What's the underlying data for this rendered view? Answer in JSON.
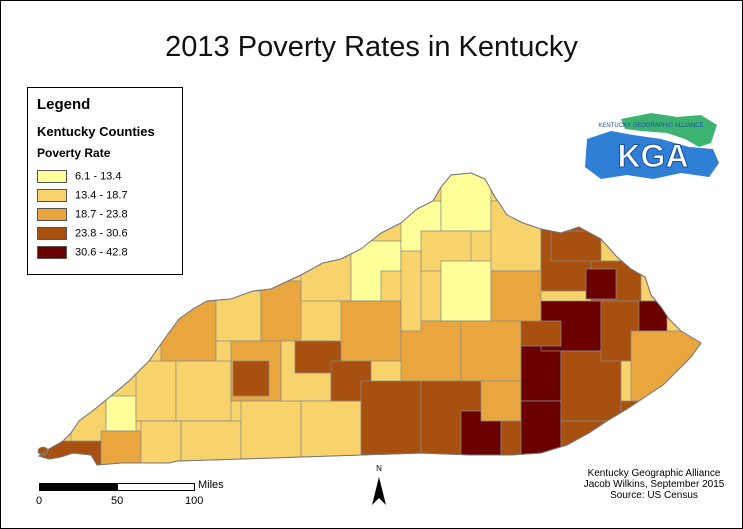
{
  "title": "2013 Poverty Rates in Kentucky",
  "legend": {
    "title": "Legend",
    "layer": "Kentucky Counties",
    "field": "Poverty Rate",
    "classes": [
      {
        "label": "6.1 - 13.4",
        "color": "#ffff99"
      },
      {
        "label": "13.4 - 18.7",
        "color": "#f8d36b"
      },
      {
        "label": "18.7 - 23.8",
        "color": "#e9a53e"
      },
      {
        "label": "23.8 - 30.6",
        "color": "#a8500f"
      },
      {
        "label": "30.6 - 42.8",
        "color": "#6a0000"
      }
    ]
  },
  "scale_bar": {
    "labels": [
      "0",
      "50",
      "100"
    ],
    "unit": "Miles"
  },
  "north_arrow": {
    "label": "N"
  },
  "credits": {
    "line1": "Kentucky Geographic Alliance",
    "line2": "Jacob Wilkins, September 2015",
    "line3": "Source: US Census"
  },
  "logo": {
    "text": "KENTUCKY GEOGRAPHIC ALLIANCE",
    "letters": "KGA",
    "colors": {
      "land": "#3cb371",
      "water": "#2f7fd6"
    }
  },
  "map": {
    "region": "Kentucky",
    "class_by_region": {
      "northern": 0,
      "north_central": 1,
      "western": 2,
      "south_central": 3,
      "eastern": 4
    }
  }
}
